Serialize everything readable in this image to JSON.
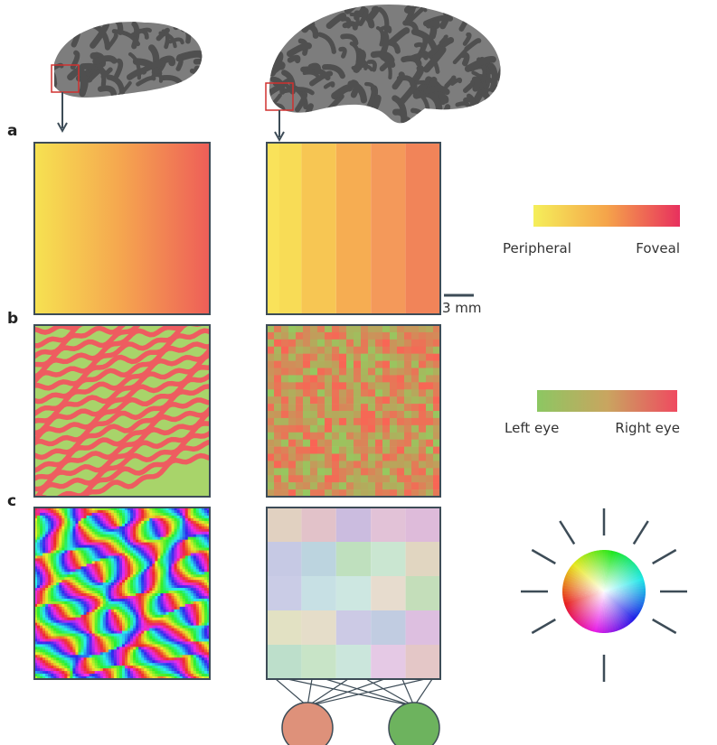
{
  "labels": {
    "a": "a",
    "b": "b",
    "c": "c"
  },
  "legend_retinotopy": {
    "left": "Peripheral",
    "right": "Foveal"
  },
  "legend_ocular": {
    "left": "Left eye",
    "right": "Right eye"
  },
  "scale_bar": "3 mm"
}
